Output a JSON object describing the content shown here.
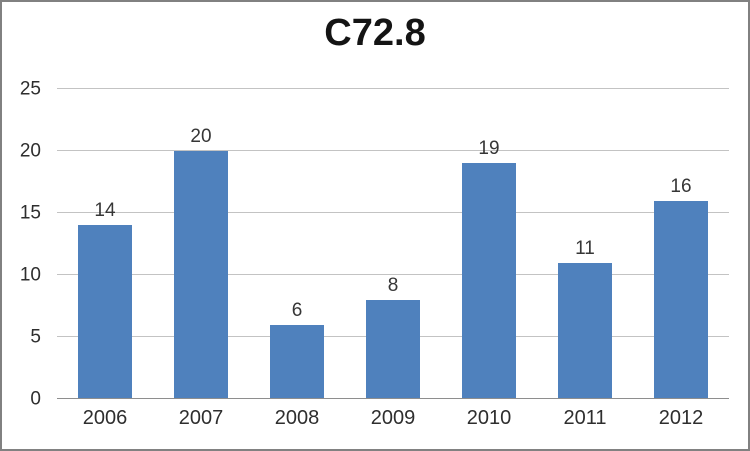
{
  "chart_data": {
    "type": "bar",
    "title": "C72.8",
    "categories": [
      "2006",
      "2007",
      "2008",
      "2009",
      "2010",
      "2011",
      "2012"
    ],
    "values": [
      14,
      20,
      6,
      8,
      19,
      11,
      16
    ],
    "data_labels": [
      "14",
      "20",
      "6",
      "8",
      "19",
      "11",
      "16"
    ],
    "xlabel": "",
    "ylabel": "",
    "ylim": [
      0,
      25
    ],
    "yticks": [
      0,
      5,
      10,
      15,
      20,
      25
    ],
    "grid": true,
    "legend": false,
    "colors": {
      "bar": "#4F81BD",
      "gridline": "#C3C3C3",
      "axis_line": "#8E8E8E",
      "tick_label": "#2E2E2E",
      "value_label": "#363636",
      "title": "#141414",
      "frame_border": "#818181",
      "background": "#FFFFFF"
    }
  }
}
